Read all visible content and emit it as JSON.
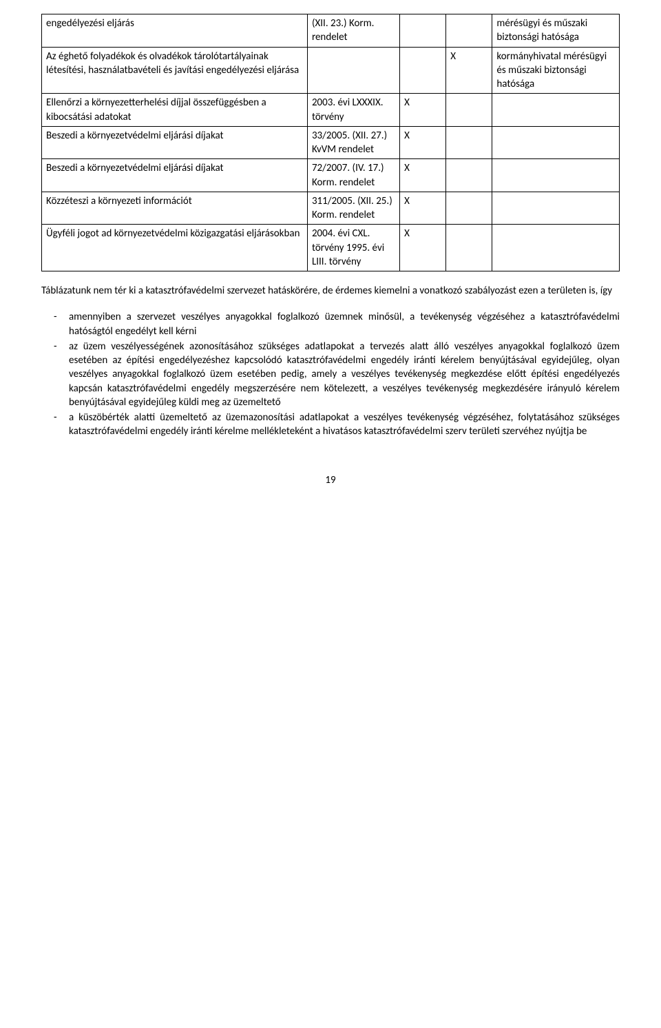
{
  "table": {
    "rows": [
      {
        "c1": "engedélyezési eljárás",
        "c2": "(XII. 23.) Korm. rendelet",
        "c3": "",
        "c4": "",
        "c5": "mérésügyi és műszaki biztonsági hatósága",
        "has_c5": true,
        "rowspan_c5": 2
      },
      {
        "c1": "Az éghető folyadékok és olvadékok tárolótartályainak létesítési, használatbavételi és javítási engedélyezési eljárása",
        "c2": "",
        "c3": "",
        "c4": "X",
        "c5": "kormányhivatal mérésügyi és műszaki biztonsági hatósága",
        "has_c5": false
      },
      {
        "c1": "Ellenőrzi a környezetterhelési díjjal összefüggésben a kibocsátási adatokat",
        "c2": "2003. évi LXXXIX. törvény",
        "c3": "X",
        "c4": "",
        "c5": "",
        "has_c5": true
      },
      {
        "c1": "Beszedi a környezetvédelmi eljárási díjakat",
        "c2": "33/2005. (XII. 27.) KvVM rendelet",
        "c3": "X",
        "c4": "",
        "c5": "",
        "has_c5": true
      },
      {
        "c1": "Beszedi a környezetvédelmi eljárási díjakat",
        "c2": "72/2007. (IV. 17.) Korm. rendelet",
        "c3": "X",
        "c4": "",
        "c5": "",
        "has_c5": true
      },
      {
        "c1": "Közzéteszi a környezeti információt",
        "c2": "311/2005. (XII. 25.) Korm. rendelet",
        "c3": "X",
        "c4": "",
        "c5": "",
        "has_c5": true
      },
      {
        "c1": "Ügyféli jogot ad környezetvédelmi közigazgatási eljárásokban",
        "c2": "2004. évi CXL. törvény 1995. évi LIII. törvény",
        "c3": "X",
        "c4": "",
        "c5": "",
        "has_c5": true
      }
    ],
    "row1_c5_special": "kormányhivatal mérésügyi és műszaki biztonsági hatósága"
  },
  "intro": "Táblázatunk nem tér ki a katasztrófavédelmi szervezet hatáskörére, de érdemes kiemelni a vonatkozó szabályozást ezen a területen is, így",
  "bullets": [
    "amennyiben a szervezet veszélyes anyagokkal foglalkozó üzemnek minősül, a tevékenység végzéséhez a katasztrófavédelmi hatóságtól engedélyt kell kérni",
    "az üzem veszélyességének azonosításához szükséges adatlapokat a tervezés alatt álló veszélyes anyagokkal foglalkozó üzem esetében az építési engedélyezéshez kapcsolódó katasztrófavédelmi engedély iránti kérelem benyújtásával egyidejűleg, olyan veszélyes anyagokkal foglalkozó üzem esetében pedig, amely a veszélyes tevékenység megkezdése előtt építési engedélyezés kapcsán katasztrófavédelmi engedély megszerzésére nem kötelezett, a veszélyes tevékenység megkezdésére irányuló kérelem benyújtásával egyidejűleg küldi meg az üzemeltető",
    "a küszöbérték alatti üzemeltető az üzemazonosítási adatlapokat a veszélyes tevékenység végzéséhez, folytatásához szükséges katasztrófavédelmi engedély iránti kérelme mellékleteként a hivatásos katasztrófavédelmi szerv területi szervéhez nyújtja be"
  ],
  "page_number": "19"
}
